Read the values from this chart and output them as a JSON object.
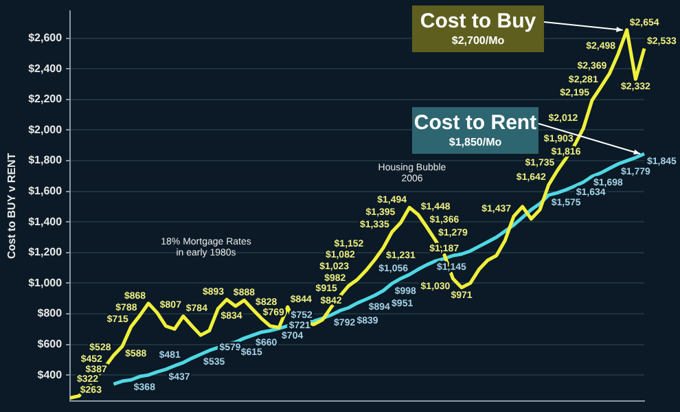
{
  "chart_data": {
    "type": "line",
    "ylabel": "Cost to BUY v RENT",
    "categories": [
      null,
      null,
      null,
      null,
      null,
      null,
      null,
      null,
      null,
      null,
      null,
      null,
      null,
      null,
      null,
      null,
      null,
      null,
      null,
      null,
      null,
      null,
      null,
      null,
      null,
      null,
      null,
      null,
      null,
      null,
      null,
      null,
      null,
      null,
      null,
      null,
      null,
      null,
      null,
      null,
      null,
      null,
      null,
      null,
      null,
      null,
      null,
      null,
      null,
      null,
      null,
      null,
      null,
      null,
      null,
      null,
      null,
      null,
      null,
      null,
      null,
      null,
      null,
      null,
      null,
      null,
      null
    ],
    "series": [
      {
        "name": "Cost to Buy",
        "color": "#f0f03c",
        "values": [
          250,
          263,
          322,
          387,
          452,
          528,
          588,
          715,
          788,
          868,
          807,
          720,
          700,
          784,
          720,
          660,
          690,
          834,
          893,
          850,
          888,
          828,
          769,
          720,
          710,
          844,
          720,
          740,
          730,
          760,
          842,
          915,
          982,
          1023,
          1082,
          1152,
          1231,
          1335,
          1395,
          1494,
          1448,
          1366,
          1279,
          1187,
          1030,
          971,
          1000,
          1090,
          1150,
          1180,
          1280,
          1437,
          1500,
          1420,
          1480,
          1642,
          1735,
          1816,
          1903,
          2012,
          2195,
          2281,
          2369,
          2498,
          2654,
          2332,
          2533
        ],
        "value_labels": [
          null,
          "$263",
          "$322",
          "$387",
          "$452",
          "$528",
          "$588",
          "$715",
          "$788",
          "$868",
          "$807",
          null,
          null,
          "$784",
          null,
          null,
          null,
          "$834",
          "$893",
          null,
          "$888",
          "$828",
          "$769",
          null,
          null,
          "$844",
          null,
          null,
          null,
          null,
          "$842",
          "$915",
          "$982",
          "$1,023",
          "$1,082",
          "$1,152",
          "$1,231",
          "$1,335",
          "$1,395",
          "$1,494",
          "$1,448",
          "$1,366",
          "$1,279",
          "$1,187",
          "$1,030",
          "$971",
          null,
          null,
          null,
          null,
          null,
          "$1,437",
          null,
          null,
          null,
          "$1,642",
          "$1,735",
          "$1,816",
          "$1,903",
          "$2,012",
          "$2,195",
          "$2,281",
          "$2,369",
          "$2,498",
          "$2,654",
          "$2,332",
          "$2,533"
        ]
      },
      {
        "name": "Cost to Rent",
        "color": "#4fd8e4",
        "values": [
          null,
          null,
          null,
          null,
          null,
          340,
          360,
          368,
          390,
          400,
          420,
          437,
          460,
          481,
          510,
          535,
          560,
          579,
          600,
          615,
          640,
          660,
          680,
          690,
          704,
          721,
          730,
          740,
          752,
          770,
          792,
          820,
          839,
          870,
          894,
          920,
          951,
          998,
          1030,
          1056,
          1090,
          1120,
          1145,
          1160,
          1180,
          1190,
          1210,
          1240,
          1270,
          1300,
          1340,
          1380,
          1430,
          1480,
          1520,
          1575,
          1590,
          1610,
          1634,
          1660,
          1698,
          1720,
          1750,
          1779,
          1800,
          1820,
          1845
        ],
        "value_labels": [
          null,
          null,
          null,
          null,
          null,
          null,
          null,
          "$368",
          null,
          null,
          null,
          "$437",
          null,
          "$481",
          null,
          "$535",
          null,
          "$579",
          null,
          "$615",
          null,
          "$660",
          null,
          null,
          "$704",
          "$721",
          null,
          null,
          "$752",
          null,
          "$792",
          null,
          "$839",
          null,
          "$894",
          null,
          "$951",
          "$998",
          null,
          "$1,056",
          null,
          null,
          "$1,145",
          null,
          null,
          null,
          null,
          null,
          null,
          null,
          null,
          null,
          null,
          null,
          null,
          "$1,575",
          null,
          null,
          "$1,634",
          null,
          "$1,698",
          null,
          null,
          "$1,779",
          null,
          null,
          "$1,845"
        ]
      }
    ],
    "ylim": [
      230,
      2780
    ],
    "yticks": [
      {
        "value": 400,
        "label": "$400"
      },
      {
        "value": 600,
        "label": "$600"
      },
      {
        "value": 800,
        "label": "$800"
      },
      {
        "value": 1000,
        "label": "$1,000"
      },
      {
        "value": 1200,
        "label": "$1,200"
      },
      {
        "value": 1400,
        "label": "$1,400"
      },
      {
        "value": 1600,
        "label": "$1,600"
      },
      {
        "value": 1800,
        "label": "$1,800"
      },
      {
        "value": 2000,
        "label": "$2,000"
      },
      {
        "value": 2200,
        "label": "$2,200"
      },
      {
        "value": 2400,
        "label": "$2,400"
      },
      {
        "value": 2600,
        "label": "$2,600"
      }
    ],
    "annotations": [
      "18% Mortgage Rates\nin early 1980s",
      "Housing Bubble\n2006",
      "$2,700/Mo",
      "$1,850/Mo"
    ],
    "grid": "y",
    "legend": false,
    "marker": "none",
    "line_style": "solid",
    "tick_labels": "y"
  }
}
